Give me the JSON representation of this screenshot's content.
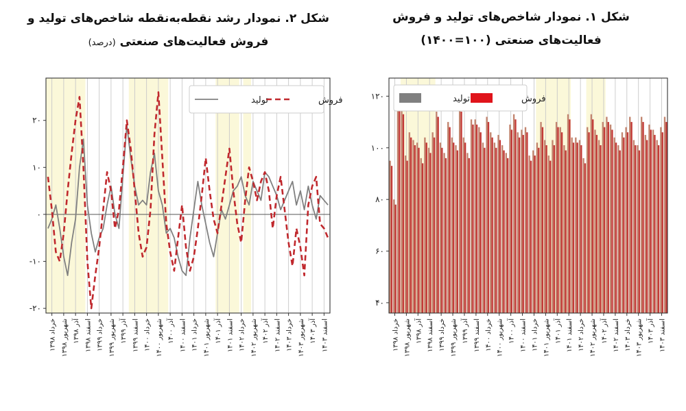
{
  "left_panel": {
    "title_line1": "شکل ۲. نمودار رشد نقطه‌به‌نقطه شاخص‌های تولید و",
    "title_line2": "فروش فعالیت‌های صنعتی",
    "title_unit": "(درصد)"
  },
  "right_panel": {
    "title_line1": "شکل ۱. نمودار شاخص‌های تولید و فروش",
    "title_line2": "فعالیت‌های صنعتی (۱۰۰=۱۴۰۰)"
  },
  "colors": {
    "production_line": "#808080",
    "sales_line": "#c0282d",
    "production_bar": "#c2856f",
    "sales_bar": "#c33a37",
    "shade": "#fbf8d9",
    "grid": "#c8c8c8"
  },
  "tick_labels": [
    "خرداد ۱۳۹۸",
    "شهریور ۱۳۹۸",
    "آذر ۱۳۹۸",
    "اسفند ۱۳۹۸",
    "خرداد ۱۳۹۹",
    "شهریور ۱۳۹۹",
    "آذر ۱۳۹۹",
    "اسفند ۱۳۹۹",
    "خرداد ۱۴۰۰",
    "شهریور ۱۴۰۰",
    "آذر ۱۴۰۰",
    "اسفند ۱۴۰۰",
    "خرداد ۱۴۰۱",
    "شهریور ۱۴۰۱",
    "آذر ۱۴۰۱",
    "اسفند ۱۴۰۱",
    "خرداد ۱۴۰۲",
    "شهریور ۱۴۰۲",
    "آذر ۱۴۰۲",
    "اسفند ۱۴۰۲",
    "خرداد ۱۴۰۳",
    "شهریور ۱۴۰۳",
    "آذر ۱۴۰۳",
    "اسفند ۱۴۰۳"
  ],
  "chart_data": [
    {
      "type": "line",
      "panel": "left",
      "title": "شکل ۲. نمودار رشد نقطه‌به‌نقطه شاخص‌های تولید و فروش فعالیت‌های صنعتی (درصد)",
      "legend_position": "top-right",
      "ylim": [
        -21,
        29
      ],
      "yticks": [
        {
          "value": 20,
          "label": "۲۰"
        },
        {
          "value": 10,
          "label": "۱۰"
        },
        {
          "value": 0,
          "label": "۰"
        },
        {
          "value": -10,
          "label": "-۱۰"
        },
        {
          "value": -20,
          "label": "-۲۰"
        }
      ],
      "x_count": 72,
      "shaded_month_ranges": [
        [
          0,
          9
        ],
        [
          21,
          30
        ],
        [
          43,
          48
        ],
        [
          50,
          51
        ]
      ],
      "series": [
        {
          "name": "تولید",
          "style": "solid",
          "values": [
            -3,
            -1,
            2,
            -3,
            -9,
            -13,
            -6,
            -1,
            10,
            16,
            2,
            -4,
            -8,
            -5,
            -3,
            2,
            6,
            0,
            -3,
            8,
            19,
            12,
            6,
            2,
            3,
            2,
            9,
            13,
            5,
            2,
            -4,
            -3,
            -5,
            -9,
            -12,
            -13,
            -5,
            1,
            7,
            2,
            -2,
            -6,
            -9,
            -4,
            1,
            -1,
            2,
            5,
            6,
            8,
            4,
            2,
            7,
            5,
            3,
            9,
            8,
            6,
            4,
            1,
            3,
            5,
            7,
            2,
            5,
            1,
            6,
            2,
            -1,
            4,
            3,
            2
          ]
        },
        {
          "name": "فروش",
          "style": "dashed",
          "values": [
            8,
            1,
            -8,
            -10,
            -4,
            5,
            13,
            20,
            25,
            10,
            -10,
            -20,
            -13,
            -7,
            1,
            9,
            5,
            -3,
            1,
            10,
            20,
            14,
            5,
            -4,
            -9,
            -7,
            1,
            17,
            26,
            12,
            -2,
            -8,
            -12,
            -5,
            2,
            -7,
            -12,
            -9,
            -3,
            4,
            12,
            5,
            -1,
            -4,
            2,
            8,
            14,
            5,
            -2,
            -6,
            3,
            10,
            7,
            3,
            7,
            9,
            5,
            -3,
            4,
            8,
            1,
            -6,
            -11,
            -3,
            -7,
            -13,
            2,
            6,
            8,
            -2,
            -3,
            -5
          ]
        }
      ]
    },
    {
      "type": "bar",
      "panel": "right",
      "title": "شکل ۱. نمودار شاخص‌های تولید و فروش فعالیت‌های صنعتی (۱۰۰=۱۴۰۰)",
      "legend_position": "top-right",
      "ylim": [
        36,
        127
      ],
      "yticks": [
        {
          "value": 120,
          "label": "۱۲۰"
        },
        {
          "value": 100,
          "label": "۱۰۰"
        },
        {
          "value": 80,
          "label": "۸۰"
        },
        {
          "value": 60,
          "label": "۶۰"
        },
        {
          "value": 40,
          "label": "۴۰"
        }
      ],
      "x_count": 72,
      "shaded_month_ranges": [
        [
          3,
          11
        ],
        [
          38,
          46
        ],
        [
          51,
          55
        ]
      ],
      "series": [
        {
          "name": "تولید",
          "values": [
            95,
            80,
            117,
            115,
            97,
            106,
            103,
            102,
            96,
            104,
            100,
            106,
            114,
            102,
            98,
            110,
            104,
            101,
            116,
            104,
            98,
            111,
            111,
            108,
            102,
            112,
            106,
            102,
            105,
            101,
            98,
            109,
            113,
            106,
            107,
            108,
            97,
            99,
            102,
            110,
            103,
            97,
            103,
            110,
            108,
            101,
            113,
            104,
            104,
            103,
            96,
            108,
            113,
            107,
            103,
            110,
            112,
            109,
            104,
            101,
            106,
            108,
            112,
            103,
            101,
            112,
            105,
            109,
            107,
            103,
            108,
            112
          ]
        },
        {
          "name": "فروش",
          "values": [
            93,
            78,
            115,
            113,
            95,
            104,
            101,
            100,
            94,
            102,
            98,
            104,
            112,
            100,
            96,
            108,
            102,
            99,
            114,
            102,
            96,
            109,
            109,
            106,
            100,
            110,
            104,
            100,
            103,
            99,
            96,
            107,
            111,
            104,
            105,
            106,
            95,
            97,
            100,
            108,
            101,
            95,
            101,
            108,
            106,
            99,
            111,
            102,
            102,
            101,
            94,
            106,
            111,
            105,
            101,
            108,
            110,
            107,
            102,
            99,
            104,
            106,
            110,
            101,
            99,
            110,
            103,
            107,
            105,
            101,
            106,
            110
          ]
        }
      ]
    }
  ]
}
